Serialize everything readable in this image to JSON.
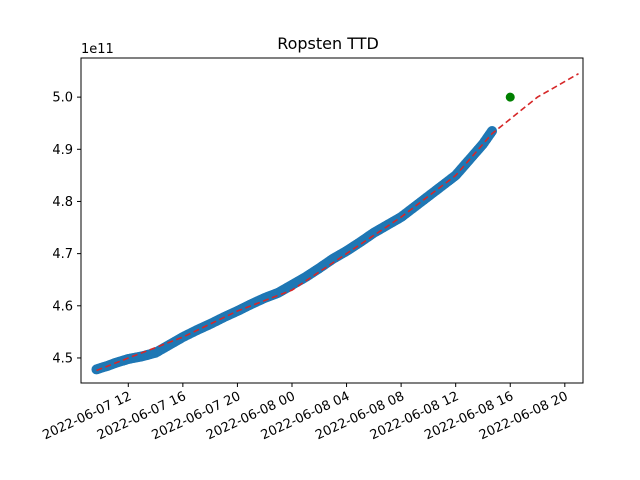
{
  "chart_data": {
    "type": "scatter",
    "title": "Ropsten TTD",
    "xlabel": "",
    "ylabel": "",
    "y_offset_label": "1e11",
    "y_scale": 100000000000.0,
    "xlim": [
      "2022-06-07 08:32",
      "2022-06-08 21:20"
    ],
    "ylim": [
      4.452,
      5.075
    ],
    "x_ticks": [
      {
        "t": "2022-06-07 12:00",
        "label": "2022-06-07 12"
      },
      {
        "t": "2022-06-07 16:00",
        "label": "2022-06-07 16"
      },
      {
        "t": "2022-06-07 20:00",
        "label": "2022-06-07 20"
      },
      {
        "t": "2022-06-08 00:00",
        "label": "2022-06-08 00"
      },
      {
        "t": "2022-06-08 04:00",
        "label": "2022-06-08 04"
      },
      {
        "t": "2022-06-08 08:00",
        "label": "2022-06-08 08"
      },
      {
        "t": "2022-06-08 12:00",
        "label": "2022-06-08 12"
      },
      {
        "t": "2022-06-08 16:00",
        "label": "2022-06-08 16"
      },
      {
        "t": "2022-06-08 20:00",
        "label": "2022-06-08 20"
      }
    ],
    "y_ticks": [
      {
        "v": 4.5,
        "label": "4.5"
      },
      {
        "v": 4.6,
        "label": "4.6"
      },
      {
        "v": 4.7,
        "label": "4.7"
      },
      {
        "v": 4.8,
        "label": "4.8"
      },
      {
        "v": 4.9,
        "label": "4.9"
      },
      {
        "v": 5.0,
        "label": "5.0"
      }
    ],
    "grid": false,
    "series": [
      {
        "kind": "scatter",
        "color": "#1f77b4",
        "points": [
          {
            "x": "2022-06-07 09:40",
            "y": 4.478
          },
          {
            "x": "2022-06-07 10:00",
            "y": 4.481
          },
          {
            "x": "2022-06-07 10:30",
            "y": 4.485
          },
          {
            "x": "2022-06-07 11:00",
            "y": 4.49
          },
          {
            "x": "2022-06-07 12:00",
            "y": 4.498
          },
          {
            "x": "2022-06-07 13:00",
            "y": 4.503
          },
          {
            "x": "2022-06-07 14:00",
            "y": 4.51
          },
          {
            "x": "2022-06-07 15:00",
            "y": 4.525
          },
          {
            "x": "2022-06-07 16:00",
            "y": 4.54
          },
          {
            "x": "2022-06-07 17:00",
            "y": 4.553
          },
          {
            "x": "2022-06-07 18:00",
            "y": 4.565
          },
          {
            "x": "2022-06-07 19:00",
            "y": 4.578
          },
          {
            "x": "2022-06-07 20:00",
            "y": 4.59
          },
          {
            "x": "2022-06-07 21:00",
            "y": 4.603
          },
          {
            "x": "2022-06-07 22:00",
            "y": 4.615
          },
          {
            "x": "2022-06-07 23:00",
            "y": 4.625
          },
          {
            "x": "2022-06-08 00:00",
            "y": 4.64
          },
          {
            "x": "2022-06-08 01:00",
            "y": 4.655
          },
          {
            "x": "2022-06-08 02:00",
            "y": 4.672
          },
          {
            "x": "2022-06-08 03:00",
            "y": 4.69
          },
          {
            "x": "2022-06-08 04:00",
            "y": 4.705
          },
          {
            "x": "2022-06-08 05:00",
            "y": 4.722
          },
          {
            "x": "2022-06-08 06:00",
            "y": 4.74
          },
          {
            "x": "2022-06-08 07:00",
            "y": 4.755
          },
          {
            "x": "2022-06-08 08:00",
            "y": 4.77
          },
          {
            "x": "2022-06-08 09:00",
            "y": 4.79
          },
          {
            "x": "2022-06-08 10:00",
            "y": 4.81
          },
          {
            "x": "2022-06-08 11:00",
            "y": 4.83
          },
          {
            "x": "2022-06-08 12:00",
            "y": 4.85
          },
          {
            "x": "2022-06-08 13:00",
            "y": 4.88
          },
          {
            "x": "2022-06-08 14:00",
            "y": 4.91
          },
          {
            "x": "2022-06-08 14:40",
            "y": 4.935
          }
        ]
      },
      {
        "kind": "fit-line",
        "color": "#d62728",
        "style": "dashed",
        "points": [
          {
            "x": "2022-06-07 09:40",
            "y": 4.476
          },
          {
            "x": "2022-06-07 12:00",
            "y": 4.5
          },
          {
            "x": "2022-06-07 16:00",
            "y": 4.54
          },
          {
            "x": "2022-06-07 20:00",
            "y": 4.59
          },
          {
            "x": "2022-06-08 00:00",
            "y": 4.63
          },
          {
            "x": "2022-06-08 04:00",
            "y": 4.7
          },
          {
            "x": "2022-06-08 08:00",
            "y": 4.77
          },
          {
            "x": "2022-06-08 12:00",
            "y": 4.85
          },
          {
            "x": "2022-06-08 14:40",
            "y": 4.93
          },
          {
            "x": "2022-06-08 18:00",
            "y": 5.0
          },
          {
            "x": "2022-06-08 21:00",
            "y": 5.045
          }
        ]
      },
      {
        "kind": "marker",
        "color": "#008000",
        "points": [
          {
            "x": "2022-06-08 16:00",
            "y": 5.0
          }
        ]
      }
    ]
  }
}
